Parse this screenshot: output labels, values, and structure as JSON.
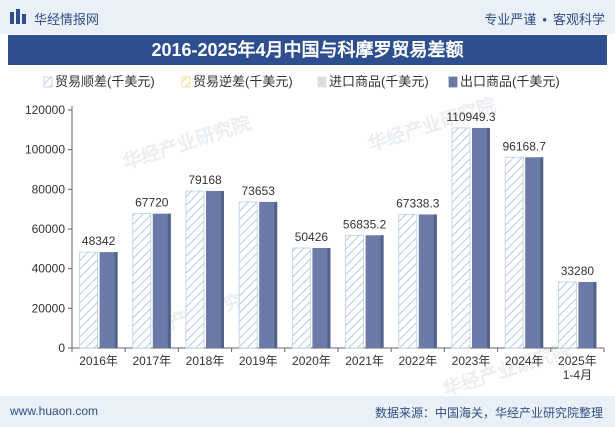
{
  "header": {
    "brand": "华经情报网",
    "tagline_left": "专业严谨",
    "tagline_right": "客观科学"
  },
  "title": "2016-2025年4月中国与科摩罗贸易差额",
  "watermark": "华经产业研究院",
  "footer": {
    "url": "www.huaon.com",
    "source": "数据来源：中国海关，华经产业研究院整理"
  },
  "colors": {
    "header_bg": "#eaf0f7",
    "title_bg": "#2e4f8f",
    "brand_text": "#2f4f86",
    "surplus": "#b9cde3",
    "deficit": "#f0dd8a",
    "import": "#dcdcdc",
    "export": "#6b7aa6"
  },
  "chart_data": {
    "type": "bar",
    "categories": [
      "2016年",
      "2017年",
      "2018年",
      "2019年",
      "2020年",
      "2021年",
      "2022年",
      "2023年",
      "2024年",
      "2025年\n1-4月"
    ],
    "series": [
      {
        "name": "贸易顺差(千美元)",
        "style": "hatched",
        "values": [
          48342,
          67720,
          79168,
          73653,
          50426,
          56835.2,
          67338.3,
          110949.3,
          96168.7,
          33280
        ],
        "labels": [
          "48342",
          "67720",
          "79168",
          "73653",
          "50426",
          "56835.2",
          "67338.3",
          "110949.3",
          "96168.7",
          "33280"
        ]
      },
      {
        "name": "贸易逆差(千美元)",
        "style": "hatched",
        "values": [
          0,
          0,
          0,
          0,
          0,
          0,
          0,
          0,
          0,
          0
        ]
      },
      {
        "name": "进口商品(千美元)",
        "style": "solid",
        "values": [
          0,
          0,
          0,
          0,
          0,
          0,
          0,
          0,
          0,
          0
        ]
      },
      {
        "name": "出口商品(千美元)",
        "style": "solid",
        "values": [
          48342,
          67720,
          79168,
          73653,
          50426,
          56835.2,
          67338.3,
          110949.3,
          96168.7,
          33280
        ]
      }
    ],
    "ylim": [
      0,
      120000
    ],
    "yticks": [
      "0",
      "20000",
      "40000",
      "60000",
      "80000",
      "100000",
      "120000"
    ],
    "legend_position": "top",
    "grid": false
  }
}
